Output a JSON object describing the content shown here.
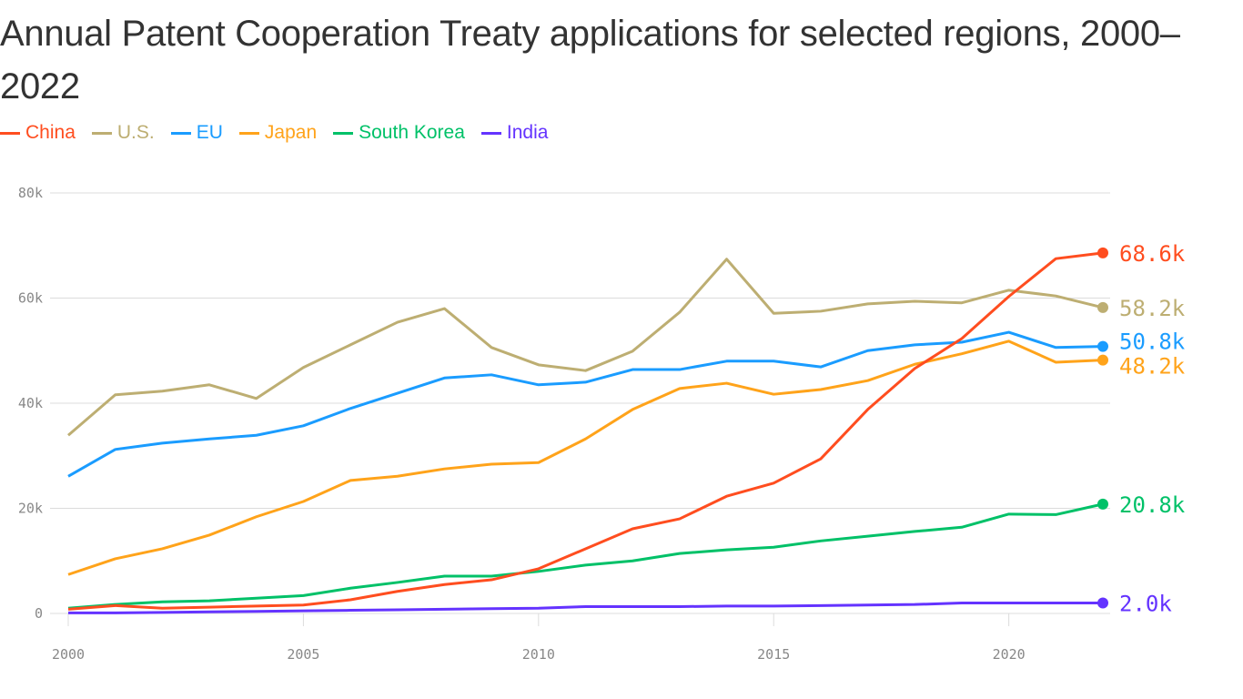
{
  "chart_data": {
    "type": "line",
    "title": "Annual Patent Cooperation Treaty applications for selected regions, 2000–2022",
    "xlabel": "",
    "ylabel": "",
    "x": [
      2000,
      2001,
      2002,
      2003,
      2004,
      2005,
      2006,
      2007,
      2008,
      2009,
      2010,
      2011,
      2012,
      2013,
      2014,
      2015,
      2016,
      2017,
      2018,
      2019,
      2020,
      2021,
      2022
    ],
    "xlim": [
      2000,
      2022
    ],
    "ylim": [
      0,
      80000
    ],
    "x_ticks": [
      "2000",
      "2005",
      "2010",
      "2015",
      "2020"
    ],
    "y_ticks": [
      "0",
      "20k",
      "40k",
      "60k",
      "80k"
    ],
    "grid": "horizontal",
    "legend": "top-left",
    "series": [
      {
        "name": "China",
        "color": "#ff4d1f",
        "end_label": "68.6k",
        "values": [
          0.8,
          1.5,
          1.0,
          1.2,
          1.4,
          1.6,
          2.6,
          4.2,
          5.5,
          6.4,
          8.5,
          12.3,
          16.1,
          18.0,
          22.3,
          24.8,
          29.4,
          38.8,
          46.6,
          52.3,
          60.3,
          67.5,
          68.6
        ]
      },
      {
        "name": "U.S.",
        "color": "#bdae72",
        "end_label": "58.2k",
        "values": [
          33.9,
          41.6,
          42.3,
          43.5,
          40.9,
          46.8,
          51.1,
          55.4,
          58.0,
          50.6,
          47.3,
          46.2,
          49.9,
          57.3,
          67.4,
          57.1,
          57.5,
          58.9,
          59.4,
          59.1,
          61.5,
          60.4,
          58.2
        ]
      },
      {
        "name": "EU",
        "color": "#1a9cff",
        "end_label": "50.8k",
        "values": [
          26.1,
          31.2,
          32.4,
          33.2,
          33.9,
          35.7,
          39.0,
          41.9,
          44.8,
          45.4,
          43.5,
          44.0,
          46.4,
          46.4,
          48.0,
          48.0,
          46.9,
          50.0,
          51.1,
          51.6,
          53.5,
          50.6,
          50.8
        ]
      },
      {
        "name": "Japan",
        "color": "#ffa31a",
        "end_label": "48.2k",
        "values": [
          7.4,
          10.4,
          12.3,
          14.9,
          18.4,
          21.3,
          25.3,
          26.1,
          27.5,
          28.4,
          28.7,
          33.2,
          38.8,
          42.8,
          43.8,
          41.7,
          42.6,
          44.3,
          47.4,
          49.4,
          51.8,
          47.8,
          48.2
        ]
      },
      {
        "name": "South Korea",
        "color": "#00c168",
        "end_label": "20.8k",
        "values": [
          1.0,
          1.7,
          2.2,
          2.4,
          2.9,
          3.4,
          4.8,
          5.9,
          7.1,
          7.1,
          8.0,
          9.2,
          10.0,
          11.4,
          12.1,
          12.6,
          13.8,
          14.7,
          15.6,
          16.4,
          18.9,
          18.8,
          20.8
        ]
      },
      {
        "name": "India",
        "color": "#6433ff",
        "end_label": "2.0k",
        "values": [
          0.1,
          0.1,
          0.2,
          0.3,
          0.4,
          0.5,
          0.6,
          0.7,
          0.8,
          0.9,
          1.0,
          1.3,
          1.3,
          1.3,
          1.4,
          1.4,
          1.5,
          1.6,
          1.7,
          2.0,
          2.0,
          2.0,
          2.0
        ]
      }
    ],
    "value_unit_note": "values in thousands"
  }
}
